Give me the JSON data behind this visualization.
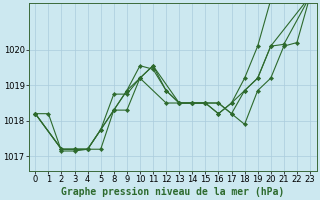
{
  "background_color": "#cce8f0",
  "grid_color": "#aaccdd",
  "line_color": "#2d6a2d",
  "marker_color": "#2d6a2d",
  "title": "Graphe pression niveau de la mer (hPa)",
  "title_fontsize": 7.0,
  "tick_fontsize": 6.0,
  "ylim": [
    1016.6,
    1021.3
  ],
  "yticks": [
    1017,
    1018,
    1019,
    1020
  ],
  "series_x": [
    [
      0,
      1,
      2,
      3,
      4,
      5,
      8,
      9,
      10,
      11,
      12,
      13,
      14,
      15,
      16,
      17,
      18,
      19,
      20,
      21,
      23
    ],
    [
      0,
      2,
      3,
      4,
      5,
      8,
      9,
      10,
      11,
      12,
      13,
      14,
      15,
      16,
      17,
      18,
      19,
      20,
      21,
      22,
      23
    ],
    [
      0,
      2,
      3,
      4,
      5,
      8,
      9,
      10,
      12,
      13,
      14,
      15,
      16,
      17,
      18,
      19,
      20,
      23
    ],
    [
      0,
      2,
      3,
      4,
      8,
      9,
      10,
      11,
      13,
      14,
      15,
      16,
      17,
      18,
      19,
      20,
      23
    ]
  ],
  "series_y": [
    [
      1018.2,
      1018.2,
      1017.15,
      1017.15,
      1017.2,
      1017.2,
      1018.3,
      1018.85,
      1019.55,
      1019.45,
      1018.85,
      1018.5,
      1018.5,
      1018.5,
      1018.5,
      1018.2,
      1018.85,
      1019.2,
      1020.1,
      1020.15,
      1021.5
    ],
    [
      1018.2,
      1017.2,
      1017.2,
      1017.2,
      1017.75,
      1018.75,
      1018.75,
      1019.2,
      1019.55,
      1018.85,
      1018.5,
      1018.5,
      1018.5,
      1018.5,
      1018.2,
      1017.9,
      1018.85,
      1019.2,
      1020.1,
      1020.2,
      1021.5
    ],
    [
      1018.2,
      1017.2,
      1017.2,
      1017.2,
      1017.75,
      1018.3,
      1018.85,
      1019.2,
      1018.5,
      1018.5,
      1018.5,
      1018.5,
      1018.2,
      1018.5,
      1018.85,
      1019.2,
      1020.1,
      1021.5
    ],
    [
      1018.2,
      1017.2,
      1017.2,
      1017.2,
      1018.3,
      1018.3,
      1019.2,
      1019.55,
      1018.5,
      1018.5,
      1018.5,
      1018.2,
      1018.5,
      1019.2,
      1020.1,
      1021.4,
      1021.4
    ]
  ],
  "xlim": [
    -0.5,
    23.5
  ]
}
